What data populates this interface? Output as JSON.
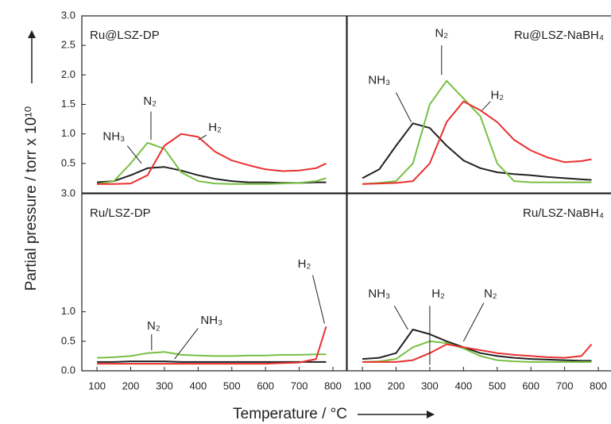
{
  "ylabel": "Partial pressure / torr x 10¹⁰",
  "xlabel": "Temperature / °C",
  "chart_data": [
    {
      "type": "line",
      "title": "Ru@LSZ-DP",
      "x": [
        100,
        150,
        200,
        250,
        300,
        350,
        400,
        450,
        500,
        550,
        600,
        650,
        700,
        750,
        780
      ],
      "xlim": [
        55,
        840
      ],
      "ylim": [
        0,
        3
      ],
      "yticks": [
        0.5,
        {
          "value": 1,
          "label": "1.0"
        },
        1.5,
        {
          "value": 2,
          "label": "2.0"
        },
        2.5,
        {
          "value": 3,
          "label": "3.0"
        }
      ],
      "series": [
        {
          "name": "NH₃",
          "color": "#222222",
          "values": [
            0.18,
            0.2,
            0.3,
            0.42,
            0.44,
            0.38,
            0.3,
            0.24,
            0.2,
            0.18,
            0.18,
            0.17,
            0.17,
            0.18,
            0.18
          ]
        },
        {
          "name": "N₂",
          "color": "#77c043",
          "values": [
            0.15,
            0.2,
            0.5,
            0.85,
            0.75,
            0.35,
            0.2,
            0.16,
            0.15,
            0.15,
            0.15,
            0.16,
            0.17,
            0.2,
            0.25
          ]
        },
        {
          "name": "H₂",
          "color": "#e8312f",
          "values": [
            0.15,
            0.15,
            0.16,
            0.3,
            0.8,
            1.0,
            0.95,
            0.7,
            0.55,
            0.47,
            0.4,
            0.37,
            0.38,
            0.42,
            0.5
          ]
        }
      ]
    },
    {
      "type": "line",
      "title": "Ru@LSZ-NaBH₄",
      "x": [
        100,
        150,
        200,
        250,
        300,
        350,
        400,
        450,
        500,
        550,
        600,
        650,
        700,
        750,
        780
      ],
      "xlim": [
        55,
        840
      ],
      "ylim": [
        0,
        3
      ],
      "series": [
        {
          "name": "NH₃",
          "color": "#222222",
          "values": [
            0.25,
            0.4,
            0.8,
            1.18,
            1.1,
            0.8,
            0.55,
            0.42,
            0.35,
            0.32,
            0.3,
            0.27,
            0.25,
            0.23,
            0.22
          ]
        },
        {
          "name": "N₂",
          "color": "#77c043",
          "values": [
            0.15,
            0.17,
            0.2,
            0.5,
            1.5,
            1.9,
            1.6,
            1.3,
            0.5,
            0.2,
            0.18,
            0.18,
            0.18,
            0.18,
            0.18
          ]
        },
        {
          "name": "H₂",
          "color": "#e8312f",
          "values": [
            0.15,
            0.16,
            0.17,
            0.2,
            0.5,
            1.2,
            1.55,
            1.4,
            1.2,
            0.9,
            0.72,
            0.6,
            0.52,
            0.54,
            0.57
          ]
        }
      ]
    },
    {
      "type": "line",
      "title": "Ru/LSZ-DP",
      "x": [
        100,
        150,
        200,
        250,
        300,
        350,
        400,
        450,
        500,
        550,
        600,
        650,
        700,
        750,
        780
      ],
      "xlim": [
        55,
        840
      ],
      "ylim": [
        0,
        3
      ],
      "yticks": [
        {
          "value": 0,
          "label": "0.0"
        },
        0.5,
        {
          "value": 1,
          "label": "1.0"
        },
        {
          "value": 3,
          "label": "3.0"
        }
      ],
      "xticks": [
        100,
        200,
        300,
        400,
        500,
        600,
        700,
        800
      ],
      "series": [
        {
          "name": "NH₃",
          "color": "#222222",
          "values": [
            0.15,
            0.15,
            0.16,
            0.16,
            0.16,
            0.15,
            0.15,
            0.15,
            0.15,
            0.15,
            0.15,
            0.15,
            0.15,
            0.15,
            0.15
          ]
        },
        {
          "name": "N₂",
          "color": "#77c043",
          "values": [
            0.22,
            0.23,
            0.25,
            0.3,
            0.32,
            0.27,
            0.26,
            0.25,
            0.25,
            0.26,
            0.26,
            0.27,
            0.27,
            0.28,
            0.28
          ]
        },
        {
          "name": "H₂",
          "color": "#e8312f",
          "values": [
            0.12,
            0.12,
            0.12,
            0.12,
            0.12,
            0.12,
            0.12,
            0.12,
            0.12,
            0.12,
            0.12,
            0.13,
            0.14,
            0.2,
            0.75
          ]
        }
      ]
    },
    {
      "type": "line",
      "title": "Ru/LSZ-NaBH₄",
      "x": [
        100,
        150,
        200,
        250,
        300,
        350,
        400,
        450,
        500,
        550,
        600,
        650,
        700,
        750,
        780
      ],
      "xlim": [
        55,
        840
      ],
      "ylim": [
        0,
        3
      ],
      "xticks": [
        100,
        200,
        300,
        400,
        500,
        600,
        700,
        800
      ],
      "series": [
        {
          "name": "NH₃",
          "color": "#222222",
          "values": [
            0.2,
            0.22,
            0.3,
            0.7,
            0.62,
            0.5,
            0.4,
            0.3,
            0.25,
            0.22,
            0.2,
            0.19,
            0.18,
            0.17,
            0.17
          ]
        },
        {
          "name": "N₂",
          "color": "#77c043",
          "values": [
            0.15,
            0.16,
            0.2,
            0.4,
            0.5,
            0.47,
            0.38,
            0.25,
            0.18,
            0.16,
            0.15,
            0.15,
            0.15,
            0.15,
            0.15
          ]
        },
        {
          "name": "H₂",
          "color": "#e8312f",
          "values": [
            0.15,
            0.15,
            0.15,
            0.18,
            0.3,
            0.45,
            0.4,
            0.35,
            0.3,
            0.27,
            0.25,
            0.23,
            0.22,
            0.25,
            0.45
          ]
        }
      ]
    }
  ]
}
